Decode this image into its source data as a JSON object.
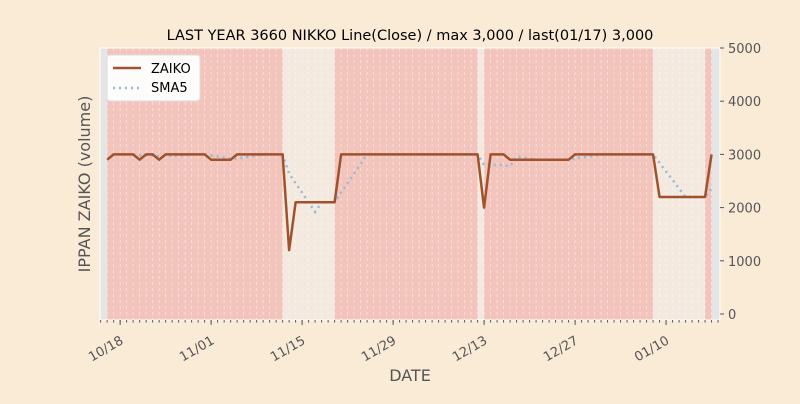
{
  "chart_data": {
    "type": "line",
    "title": "LAST YEAR 3660 NIKKO Line(Close) / max 3,000 / last(01/17) 3,000",
    "xlabel": "DATE",
    "ylabel": "IPPAN ZAIKO (volume)",
    "start_date": "2023-10-16",
    "ylim": [
      0,
      5000
    ],
    "yticks": [
      0,
      1000,
      2000,
      3000,
      4000,
      5000
    ],
    "ytick_labels": [
      "0",
      "1000",
      "2000",
      "3000",
      "4000",
      "5000"
    ],
    "xtick_labels": [
      "10/18",
      "11/01",
      "11/15",
      "11/29",
      "12/13",
      "12/27",
      "01/10"
    ],
    "xtick_day_offsets": [
      2,
      16,
      30,
      44,
      58,
      72,
      86
    ],
    "xlim_day_offsets": [
      -1.1,
      94.3
    ],
    "legend": {
      "position": "top-left",
      "entries": [
        "ZAIKO",
        "SMA5"
      ]
    },
    "sma_window": 5,
    "series": [
      {
        "name": "ZAIKO",
        "color": "#a0522d",
        "values": [
          2900,
          3000,
          3000,
          3000,
          3000,
          2900,
          3000,
          3000,
          2900,
          3000,
          3000,
          3000,
          3000,
          3000,
          3000,
          3000,
          2900,
          2900,
          2900,
          2900,
          3000,
          3000,
          3000,
          3000,
          3000,
          3000,
          3000,
          3000,
          1200,
          2100,
          2100,
          2100,
          2100,
          2100,
          2100,
          2100,
          3000,
          3000,
          3000,
          3000,
          3000,
          3000,
          3000,
          3000,
          3000,
          3000,
          3000,
          3000,
          3000,
          3000,
          3000,
          3000,
          3000,
          3000,
          3000,
          3000,
          3000,
          3000,
          2000,
          3000,
          3000,
          3000,
          2900,
          2900,
          2900,
          2900,
          2900,
          2900,
          2900,
          2900,
          2900,
          2900,
          3000,
          3000,
          3000,
          3000,
          3000,
          3000,
          3000,
          3000,
          3000,
          3000,
          3000,
          3000,
          3000,
          2200,
          2200,
          2200,
          2200,
          2200,
          2200,
          2200,
          2200,
          3000
        ]
      },
      {
        "name": "SMA5",
        "color": "#8fbcd8",
        "style": "dotted"
      }
    ],
    "highlight_color": "#f2c4bc",
    "normal_color": "#f3e9df",
    "highlight_spans_day_offsets": [
      [
        0,
        27
      ],
      [
        35,
        57
      ],
      [
        58,
        84
      ],
      [
        92,
        93
      ]
    ]
  }
}
